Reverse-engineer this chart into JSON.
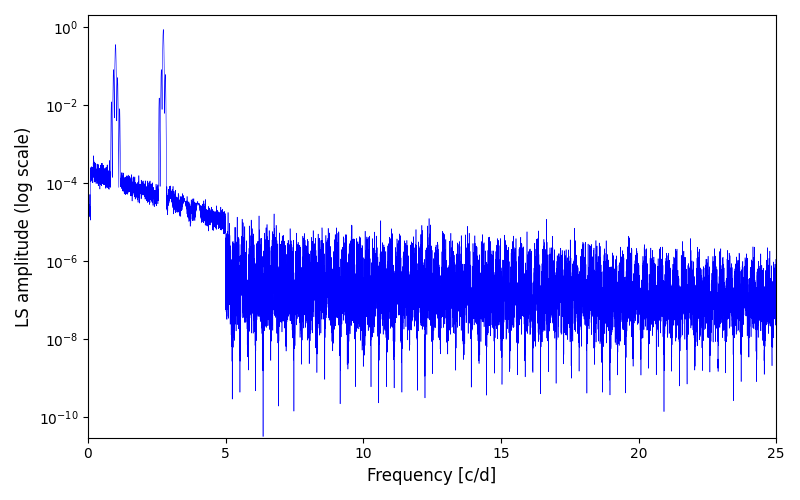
{
  "line_color": "#0000ff",
  "xlabel": "Frequency [c/d]",
  "ylabel": "LS amplitude (log scale)",
  "xlim": [
    0,
    25
  ],
  "ylim_bottom": 3e-11,
  "ylim_top": 2.0,
  "figsize": [
    8.0,
    5.0
  ],
  "dpi": 100,
  "yticks": [
    1e-10,
    1e-08,
    1e-06,
    0.0001,
    0.01,
    1.0
  ],
  "peak1_freq": 1.003,
  "peak1_amp": 0.35,
  "peak2_freq": 2.74,
  "peak2_amp": 0.85,
  "background_color": "#ffffff",
  "seed": 12345,
  "N": 15000
}
